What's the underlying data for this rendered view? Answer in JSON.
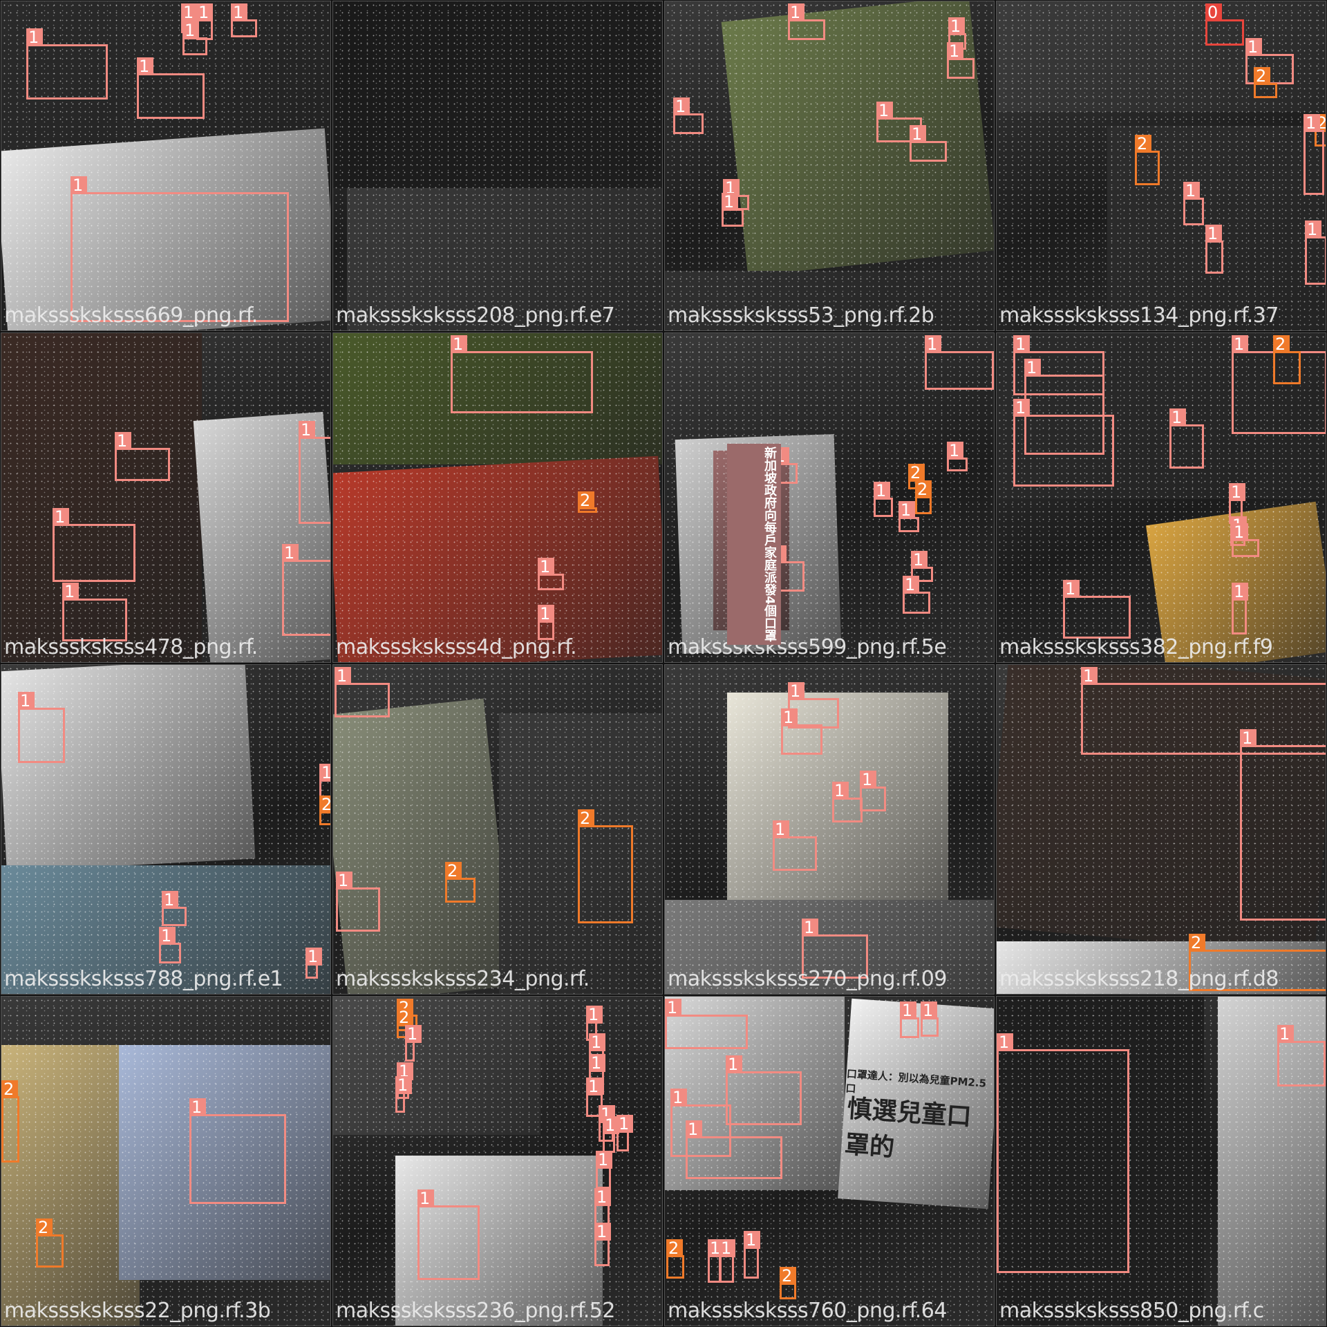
{
  "mosaic": {
    "colors": {
      "class_0": "#e8453c",
      "class_1": "#f28b82",
      "class_2": "#f07a2a"
    },
    "tiles": [
      {
        "filename": "maksssksksss669_png.rf.",
        "panel_colors": [
          "#2a2a2a",
          "#e9e9e9"
        ]
      },
      {
        "filename": "maksssksksss208_png.rf.e7",
        "panel_colors": [
          "#1a1a1a",
          "#3a3a3a"
        ]
      },
      {
        "filename": "maksssksksss53_png.rf.2b",
        "panel_colors": [
          "#6b7a4a",
          "#303030"
        ]
      },
      {
        "filename": "maksssksksss134_png.rf.37",
        "panel_colors": [
          "#3c3c3c",
          "#2d2d2d"
        ]
      },
      {
        "filename": "maksssksksss478_png.rf.",
        "panel_colors": [
          "#3b2a24",
          "#d8d8d8"
        ]
      },
      {
        "filename": "maksssksksss4d_png.rf.",
        "panel_colors": [
          "#4a5a2a",
          "#b83a2a"
        ]
      },
      {
        "filename": "maksssksksss599_png.rf.5e",
        "panel_colors": [
          "#cfcfcf",
          "#9b6a6a"
        ]
      },
      {
        "filename": "maksssksksss382_png.rf.f9",
        "panel_colors": [
          "#d9a441",
          "#2b2b2b"
        ]
      },
      {
        "filename": "maksssksksss788_png.rf.e1",
        "panel_colors": [
          "#e6e6e6",
          "#6a8a9a"
        ]
      },
      {
        "filename": "maksssksksss234_png.rf.",
        "panel_colors": [
          "#8a8f7a",
          "#3a3a3a"
        ]
      },
      {
        "filename": "maksssksksss270_png.rf.09",
        "panel_colors": [
          "#e9e6d9",
          "#7a7a7a"
        ]
      },
      {
        "filename": "maksssksksss218_png.rf.d8",
        "panel_colors": [
          "#3a2f2a",
          "#e6e6e6"
        ]
      },
      {
        "filename": "maksssksksss22_png.rf.3b",
        "panel_colors": [
          "#c9b37a",
          "#a9b9d9"
        ]
      },
      {
        "filename": "maksssksksss236_png.rf.52",
        "panel_colors": [
          "#4a4a4a",
          "#e8e8e8"
        ]
      },
      {
        "filename": "maksssksksss760_png.rf.64",
        "panel_colors": [
          "#d9d9d9",
          "#f2f2f2"
        ]
      },
      {
        "filename": "maksssksksss850_png.rf.c",
        "panel_colors": [
          "#1e1e1e",
          "#d4d4d4"
        ]
      }
    ],
    "cjk_texts": {
      "t7_caption": "新加坡政府向每戶家庭派發4個口罩",
      "t15_headline": "慎選兒童口罩的",
      "t15_sub": "口罩達人：別以為兒童PM2.5口"
    }
  }
}
